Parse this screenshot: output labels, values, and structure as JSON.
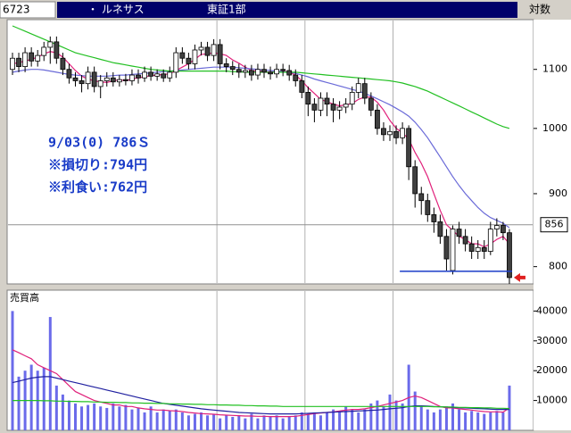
{
  "header": {
    "code": "6723",
    "name": "・ ルネサス",
    "market": "東証1部",
    "scale_mode": "対数"
  },
  "chart_data": [
    {
      "type": "candlestick",
      "log": true,
      "annotations": [
        "9/03(0) 786Ｓ",
        "※損切り:794円",
        "※利食い:762円"
      ],
      "ylim": [
        778,
        1192
      ],
      "yticks": [
        800,
        900,
        1000,
        1100
      ],
      "price_label": 856,
      "stop_line": 794,
      "vlines": [
        32,
        46,
        60
      ],
      "up_color": "#ffffff",
      "down_color": "#404040",
      "open": [
        1100,
        1120,
        1105,
        1130,
        1115,
        1125,
        1140,
        1150,
        1120,
        1100,
        1085,
        1080,
        1075,
        1095,
        1070,
        1080,
        1085,
        1078,
        1082,
        1080,
        1090,
        1085,
        1095,
        1088,
        1092,
        1085,
        1095,
        1130,
        1120,
        1110,
        1135,
        1140,
        1125,
        1145,
        1110,
        1105,
        1100,
        1095,
        1098,
        1090,
        1100,
        1095,
        1092,
        1100,
        1098,
        1090,
        1080,
        1060,
        1040,
        1030,
        1050,
        1040,
        1030,
        1035,
        1040,
        1060,
        1075,
        1050,
        1030,
        1000,
        990,
        995,
        985,
        1000,
        940,
        900,
        890,
        870,
        860,
        840,
        795,
        850,
        840,
        830,
        820,
        825,
        820,
        850,
        855,
        845
      ],
      "high": [
        1130,
        1130,
        1140,
        1140,
        1135,
        1150,
        1160,
        1160,
        1130,
        1110,
        1095,
        1090,
        1105,
        1105,
        1090,
        1095,
        1095,
        1090,
        1092,
        1100,
        1100,
        1105,
        1105,
        1100,
        1100,
        1105,
        1140,
        1140,
        1130,
        1145,
        1150,
        1150,
        1155,
        1155,
        1120,
        1115,
        1110,
        1108,
        1108,
        1110,
        1110,
        1105,
        1110,
        1110,
        1108,
        1100,
        1090,
        1070,
        1050,
        1060,
        1060,
        1050,
        1045,
        1050,
        1070,
        1085,
        1085,
        1060,
        1040,
        1010,
        1005,
        1005,
        1010,
        1005,
        950,
        910,
        900,
        880,
        870,
        850,
        855,
        860,
        850,
        840,
        835,
        835,
        860,
        865,
        860,
        850
      ],
      "low": [
        1090,
        1095,
        1095,
        1105,
        1105,
        1115,
        1110,
        1110,
        1090,
        1075,
        1070,
        1060,
        1065,
        1060,
        1050,
        1070,
        1070,
        1070,
        1072,
        1072,
        1075,
        1078,
        1080,
        1080,
        1078,
        1078,
        1085,
        1110,
        1100,
        1100,
        1125,
        1115,
        1115,
        1100,
        1095,
        1090,
        1085,
        1085,
        1080,
        1082,
        1085,
        1082,
        1085,
        1088,
        1080,
        1070,
        1050,
        1020,
        1010,
        1020,
        1020,
        1010,
        1015,
        1025,
        1030,
        1050,
        1040,
        1020,
        990,
        980,
        980,
        975,
        975,
        920,
        880,
        870,
        860,
        845,
        830,
        795,
        790,
        830,
        820,
        810,
        810,
        810,
        815,
        840,
        835,
        778
      ],
      "close": [
        1120,
        1105,
        1130,
        1115,
        1125,
        1140,
        1150,
        1120,
        1100,
        1085,
        1080,
        1075,
        1095,
        1070,
        1080,
        1085,
        1078,
        1082,
        1080,
        1090,
        1085,
        1095,
        1088,
        1092,
        1085,
        1095,
        1130,
        1120,
        1110,
        1135,
        1140,
        1125,
        1145,
        1110,
        1105,
        1100,
        1095,
        1098,
        1090,
        1100,
        1095,
        1092,
        1100,
        1098,
        1090,
        1080,
        1060,
        1040,
        1030,
        1050,
        1040,
        1030,
        1035,
        1040,
        1060,
        1075,
        1050,
        1030,
        1000,
        990,
        995,
        985,
        1000,
        940,
        900,
        890,
        870,
        860,
        840,
        810,
        850,
        840,
        830,
        820,
        825,
        820,
        850,
        855,
        845,
        786
      ],
      "series": [
        {
          "color": "#e0207a",
          "values": [
            1110,
            1112,
            1115,
            1118,
            1122,
            1128,
            1132,
            1130,
            1122,
            1110,
            1098,
            1088,
            1083,
            1080,
            1078,
            1077,
            1080,
            1082,
            1080,
            1083,
            1085,
            1087,
            1089,
            1090,
            1091,
            1092,
            1098,
            1104,
            1110,
            1118,
            1127,
            1128,
            1130,
            1128,
            1125,
            1117,
            1111,
            1104,
            1098,
            1097,
            1096,
            1095,
            1095,
            1097,
            1095,
            1090,
            1080,
            1068,
            1058,
            1048,
            1044,
            1040,
            1037,
            1039,
            1041,
            1048,
            1052,
            1052,
            1043,
            1030,
            1013,
            1000,
            993,
            983,
            962,
            945,
            925,
            900,
            876,
            856,
            848,
            840,
            836,
            830,
            830,
            826,
            830,
            836,
            840,
            830
          ]
        },
        {
          "color": "#6a6ad8",
          "values": [
            1095,
            1097,
            1099,
            1100,
            1100,
            1099,
            1097,
            1095,
            1093,
            1091,
            1090,
            1089,
            1088,
            1088,
            1088,
            1088,
            1089,
            1090,
            1090,
            1091,
            1092,
            1093,
            1094,
            1095,
            1096,
            1097,
            1098,
            1099,
            1100,
            1101,
            1102,
            1103,
            1104,
            1104,
            1104,
            1104,
            1103,
            1102,
            1101,
            1100,
            1099,
            1098,
            1097,
            1096,
            1095,
            1093,
            1090,
            1087,
            1083,
            1080,
            1077,
            1074,
            1071,
            1068,
            1065,
            1062,
            1058,
            1054,
            1049,
            1044,
            1039,
            1033,
            1027,
            1020,
            1010,
            998,
            985,
            970,
            955,
            940,
            925,
            912,
            900,
            890,
            880,
            872,
            866,
            862,
            858,
            852
          ]
        },
        {
          "color": "#22c022",
          "values": [
            1180,
            1175,
            1170,
            1165,
            1160,
            1155,
            1150,
            1145,
            1140,
            1135,
            1130,
            1127,
            1124,
            1121,
            1118,
            1115,
            1112,
            1110,
            1108,
            1106,
            1104,
            1102,
            1100,
            1099,
            1098,
            1097,
            1097,
            1097,
            1097,
            1097,
            1097,
            1097,
            1097,
            1097,
            1097,
            1096,
            1096,
            1095,
            1095,
            1095,
            1095,
            1095,
            1095,
            1095,
            1095,
            1095,
            1094,
            1093,
            1092,
            1091,
            1090,
            1089,
            1088,
            1087,
            1086,
            1085,
            1084,
            1083,
            1082,
            1081,
            1080,
            1078,
            1076,
            1073,
            1070,
            1066,
            1062,
            1057,
            1052,
            1047,
            1042,
            1037,
            1032,
            1027,
            1022,
            1017,
            1012,
            1007,
            1003,
            1000
          ]
        }
      ]
    },
    {
      "type": "bar",
      "label": "売買高",
      "color": "#6b6bea",
      "ylim": [
        0,
        47000
      ],
      "yticks": [
        10000,
        20000,
        30000,
        40000
      ],
      "vlines": [
        32,
        46,
        60
      ],
      "values": [
        40000,
        18000,
        20000,
        22000,
        20000,
        21000,
        38000,
        15000,
        12000,
        10000,
        9000,
        8000,
        8500,
        9000,
        8000,
        7500,
        9000,
        8000,
        8500,
        7000,
        7500,
        6000,
        8000,
        6000,
        7000,
        6500,
        7000,
        6000,
        5000,
        5500,
        6000,
        5000,
        5500,
        4000,
        5000,
        4500,
        5000,
        4000,
        5500,
        4000,
        5000,
        4500,
        5000,
        4000,
        4500,
        5000,
        6000,
        5500,
        6000,
        5000,
        6000,
        7000,
        6500,
        8000,
        7000,
        6000,
        7000,
        9000,
        10000,
        8000,
        12000,
        10000,
        9000,
        22000,
        13000,
        8000,
        7000,
        6000,
        7000,
        8000,
        9000,
        7000,
        6000,
        6500,
        6000,
        5500,
        6000,
        6500,
        6000,
        15000
      ],
      "series": [
        {
          "color": "#e0207a",
          "values": [
            27000,
            26000,
            25000,
            24000,
            22000,
            21000,
            20000,
            19000,
            17000,
            15000,
            13000,
            12000,
            11000,
            10000,
            9500,
            9000,
            8500,
            8500,
            8000,
            8000,
            7500,
            7200,
            7000,
            6800,
            6800,
            6600,
            6500,
            6300,
            6000,
            5800,
            5600,
            5500,
            5400,
            5200,
            5100,
            5000,
            4900,
            4800,
            4800,
            4700,
            4700,
            4600,
            4600,
            4600,
            4600,
            4700,
            5000,
            5300,
            5600,
            5800,
            6000,
            6200,
            6500,
            6800,
            7000,
            7000,
            7200,
            7600,
            8000,
            8500,
            9000,
            9500,
            10000,
            11000,
            11500,
            11000,
            10000,
            9000,
            8000,
            7500,
            7500,
            7200,
            7000,
            6800,
            6500,
            6300,
            6200,
            6200,
            6100,
            7500
          ]
        },
        {
          "color": "#2020a0",
          "values": [
            16000,
            16500,
            17000,
            17500,
            17800,
            18000,
            18000,
            17500,
            17000,
            16500,
            16000,
            15500,
            15000,
            14500,
            14000,
            13500,
            13000,
            12500,
            12000,
            11500,
            11000,
            10500,
            10000,
            9500,
            9000,
            8700,
            8400,
            8100,
            7800,
            7500,
            7200,
            7000,
            6800,
            6600,
            6400,
            6200,
            6000,
            5900,
            5800,
            5700,
            5600,
            5500,
            5500,
            5500,
            5500,
            5500,
            5600,
            5700,
            5800,
            5900,
            6000,
            6100,
            6200,
            6300,
            6400,
            6500,
            6600,
            6700,
            6800,
            7000,
            7200,
            7400,
            7600,
            8000,
            8200,
            8200,
            8100,
            8000,
            7900,
            7800,
            7700,
            7600,
            7500,
            7400,
            7300,
            7200,
            7100,
            7000,
            7000,
            7000
          ]
        },
        {
          "color": "#22c022",
          "values": [
            10000,
            10000,
            10000,
            10000,
            10000,
            9900,
            9900,
            9800,
            9800,
            9700,
            9700,
            9600,
            9600,
            9500,
            9500,
            9400,
            9400,
            9300,
            9300,
            9200,
            9200,
            9100,
            9100,
            9000,
            9000,
            8900,
            8900,
            8800,
            8800,
            8700,
            8700,
            8600,
            8600,
            8500,
            8500,
            8400,
            8400,
            8300,
            8300,
            8200,
            8200,
            8100,
            8100,
            8000,
            8000,
            8000,
            8000,
            8000,
            8000,
            8000,
            8000,
            8000,
            8000,
            8000,
            8000,
            8000,
            8000,
            8000,
            8000,
            8000,
            8000,
            8000,
            8000,
            8000,
            8000,
            8000,
            8000,
            7900,
            7900,
            7800,
            7800,
            7700,
            7700,
            7600,
            7600,
            7500,
            7500,
            7400,
            7400,
            7300
          ]
        }
      ]
    }
  ]
}
